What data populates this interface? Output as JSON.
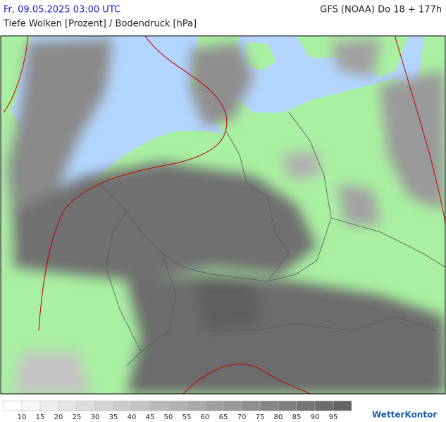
{
  "header": {
    "datetime": "Fr, 09.05.2025 03:00 UTC",
    "model": "GFS (NOAA) Do 18 + 177h",
    "subtitle": "Tiefe Wolken [Prozent] / Bodendruck [hPa]"
  },
  "legend": {
    "labels": [
      "10",
      "15",
      "20",
      "25",
      "30",
      "35",
      "40",
      "45",
      "50",
      "55",
      "60",
      "65",
      "70",
      "75",
      "80",
      "85",
      "90",
      "95"
    ]
  },
  "logo": "WetterKontor"
}
